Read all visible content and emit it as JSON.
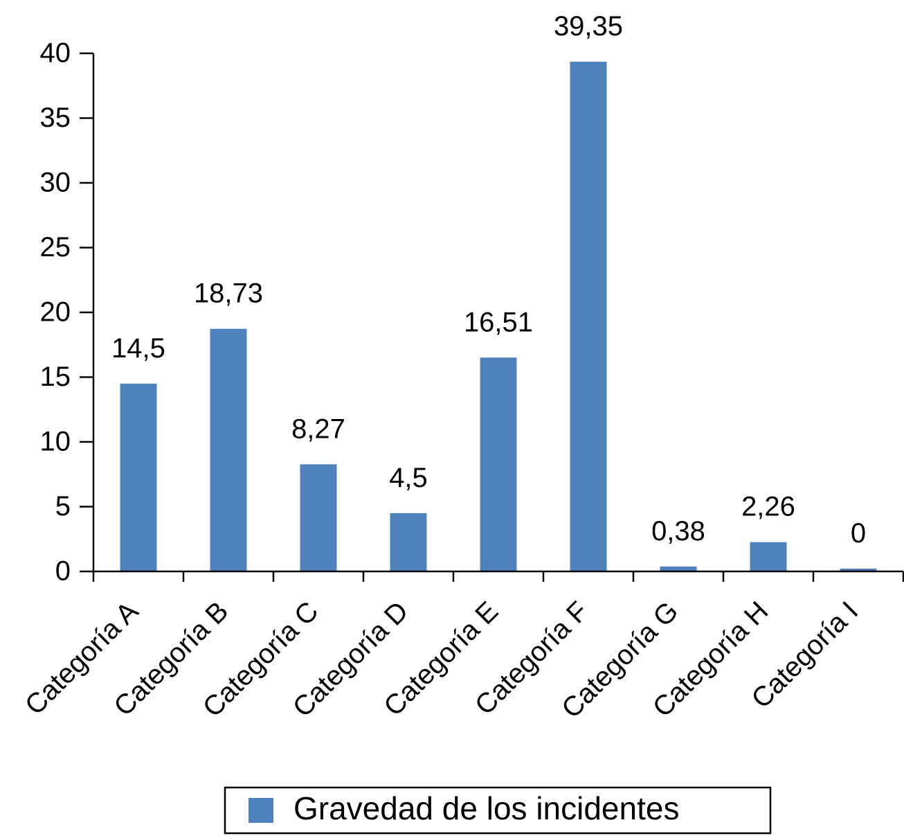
{
  "chart_data": {
    "type": "bar",
    "categories": [
      "Categoría A",
      "Categoría B",
      "Categoría C",
      "Categoría D",
      "Categoría E",
      "Categoría F",
      "Categoría G",
      "Categoría H",
      "Categoría I"
    ],
    "series": [
      {
        "name": "Gravedad de los incidentes",
        "values": [
          14.5,
          18.73,
          8.27,
          4.5,
          16.51,
          39.35,
          0.38,
          2.26,
          0
        ],
        "data_labels": [
          "14,5",
          "18,73",
          "8,27",
          "4,5",
          "16,51",
          "39,35",
          "0,38",
          "2,26",
          "0"
        ],
        "color": "#4f81bd"
      }
    ],
    "title": "",
    "xlabel": "",
    "ylabel": "",
    "ylim": [
      0,
      40
    ],
    "yticks": [
      "0",
      "5",
      "10",
      "15",
      "20",
      "25",
      "30",
      "35",
      "40"
    ],
    "grid": false,
    "legend": {
      "position": "bottom",
      "entries": [
        "Gravedad de los incidentes"
      ]
    }
  }
}
